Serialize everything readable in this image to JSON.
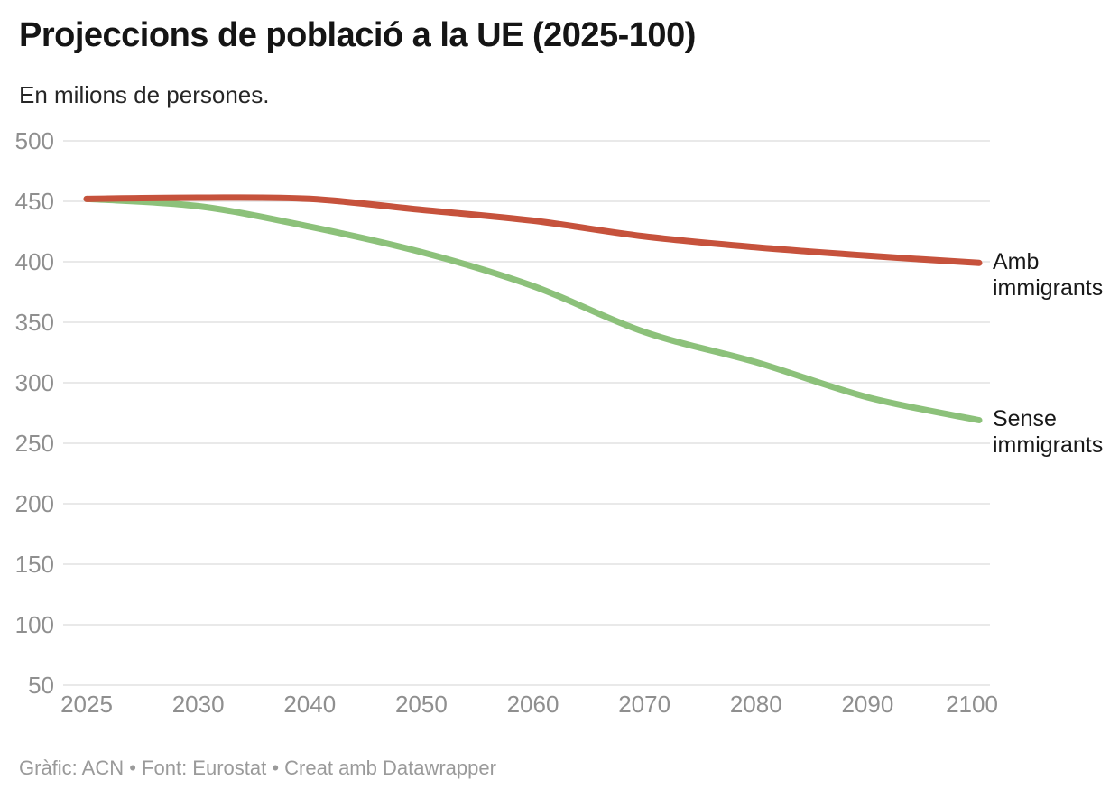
{
  "header": {
    "title": "Projeccions de població a la UE (2025-100)",
    "subtitle": "En milions de persones."
  },
  "footer": {
    "credit": "Gràfic: ACN • Font: Eurostat • Creat amb Datawrapper"
  },
  "colors": {
    "amb_immigrants": "#c6523c",
    "sense_immigrants": "#8cc17a",
    "gridline": "#e9e9e9",
    "tick_label": "#8f8f8f",
    "title_text": "#151515",
    "footer_text": "#9a9a9a"
  },
  "chart_data": {
    "type": "line",
    "title": "Projeccions de població a la UE (2025-100)",
    "subtitle": "En milions de persones.",
    "xlabel": "",
    "ylabel": "",
    "x": [
      2025,
      2030,
      2040,
      2050,
      2060,
      2070,
      2080,
      2090,
      2100
    ],
    "x_tick_labels": [
      "2025",
      "2030",
      "2040",
      "2050",
      "2060",
      "2070",
      "2080",
      "2090",
      "2100"
    ],
    "x_spacing": "categorical-even",
    "y_ticks": [
      50,
      100,
      150,
      200,
      250,
      300,
      350,
      400,
      450,
      500
    ],
    "ylim": [
      50,
      500
    ],
    "grid": "horizontal-only",
    "legend_position": "labels-right-of-line-ends",
    "series": [
      {
        "name": "Amb immigrants",
        "color": "#c6523c",
        "values": [
          452,
          453,
          452,
          443,
          434,
          421,
          412,
          405,
          399
        ]
      },
      {
        "name": "Sense immigrants",
        "color": "#8cc17a",
        "values": [
          452,
          446,
          429,
          408,
          380,
          342,
          317,
          288,
          269
        ]
      }
    ]
  }
}
